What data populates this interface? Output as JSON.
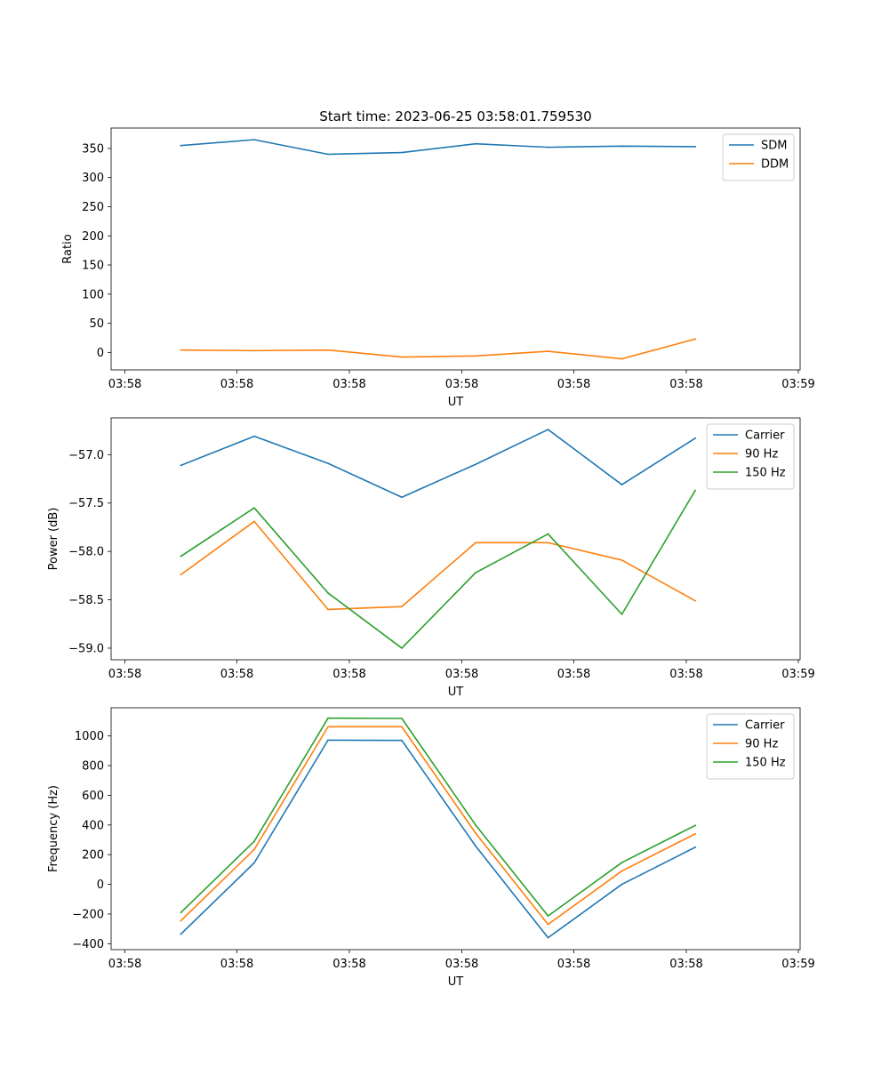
{
  "title": "Start time: 2023-06-25 03:58:01.759530",
  "chart_data": [
    {
      "type": "line",
      "xlabel": "UT",
      "ylabel": "Ratio",
      "x_tick_labels": [
        "03:58",
        "03:58",
        "03:58",
        "03:58",
        "03:58",
        "03:58",
        "03:59"
      ],
      "ylim": [
        -30,
        385
      ],
      "y_ticks": [
        0,
        50,
        100,
        150,
        200,
        250,
        300,
        350
      ],
      "y_tick_labels": [
        "0",
        "50",
        "100",
        "150",
        "200",
        "250",
        "300",
        "350"
      ],
      "legend_position": "top-right",
      "series": [
        {
          "name": "SDM",
          "color": "#1f77b4",
          "values": [
            355,
            365,
            340,
            343,
            358,
            352,
            354,
            353
          ]
        },
        {
          "name": "DDM",
          "color": "#ff7f0e",
          "values": [
            4,
            3,
            4,
            -8,
            -6,
            2,
            -11,
            23
          ]
        }
      ]
    },
    {
      "type": "line",
      "xlabel": "UT",
      "ylabel": "Power (dB)",
      "x_tick_labels": [
        "03:58",
        "03:58",
        "03:58",
        "03:58",
        "03:58",
        "03:58",
        "03:59"
      ],
      "ylim": [
        -59.12,
        -56.62
      ],
      "y_ticks": [
        -59.0,
        -58.5,
        -58.0,
        -57.5,
        -57.0
      ],
      "y_tick_labels": [
        "−59.0",
        "−58.5",
        "−58.0",
        "−57.5",
        "−57.0"
      ],
      "legend_position": "top-right",
      "series": [
        {
          "name": "Carrier",
          "color": "#1f77b4",
          "values": [
            -57.11,
            -56.81,
            -57.09,
            -57.44,
            -57.1,
            -56.74,
            -57.31,
            -56.83
          ]
        },
        {
          "name": "90 Hz",
          "color": "#ff7f0e",
          "values": [
            -58.24,
            -57.69,
            -58.6,
            -58.57,
            -57.91,
            -57.91,
            -58.09,
            -58.51
          ]
        },
        {
          "name": "150 Hz",
          "color": "#2ca02c",
          "values": [
            -58.05,
            -57.55,
            -58.43,
            -59.0,
            -58.22,
            -57.82,
            -58.65,
            -57.37
          ]
        }
      ]
    },
    {
      "type": "line",
      "xlabel": "UT",
      "ylabel": "Frequency (Hz)",
      "x_tick_labels": [
        "03:58",
        "03:58",
        "03:58",
        "03:58",
        "03:58",
        "03:58",
        "03:59"
      ],
      "ylim": [
        -440,
        1190
      ],
      "y_ticks": [
        -400,
        -200,
        0,
        200,
        400,
        600,
        800,
        1000
      ],
      "y_tick_labels": [
        "−400",
        "−200",
        "0",
        "200",
        "400",
        "600",
        "800",
        "1000"
      ],
      "legend_position": "top-right",
      "series": [
        {
          "name": "Carrier",
          "color": "#1f77b4",
          "values": [
            -335,
            145,
            972,
            970,
            258,
            -360,
            0,
            250
          ]
        },
        {
          "name": "90 Hz",
          "color": "#ff7f0e",
          "values": [
            -245,
            235,
            1062,
            1062,
            345,
            -270,
            90,
            340
          ]
        },
        {
          "name": "150 Hz",
          "color": "#2ca02c",
          "values": [
            -190,
            290,
            1120,
            1118,
            400,
            -213,
            147,
            397
          ]
        }
      ]
    }
  ]
}
